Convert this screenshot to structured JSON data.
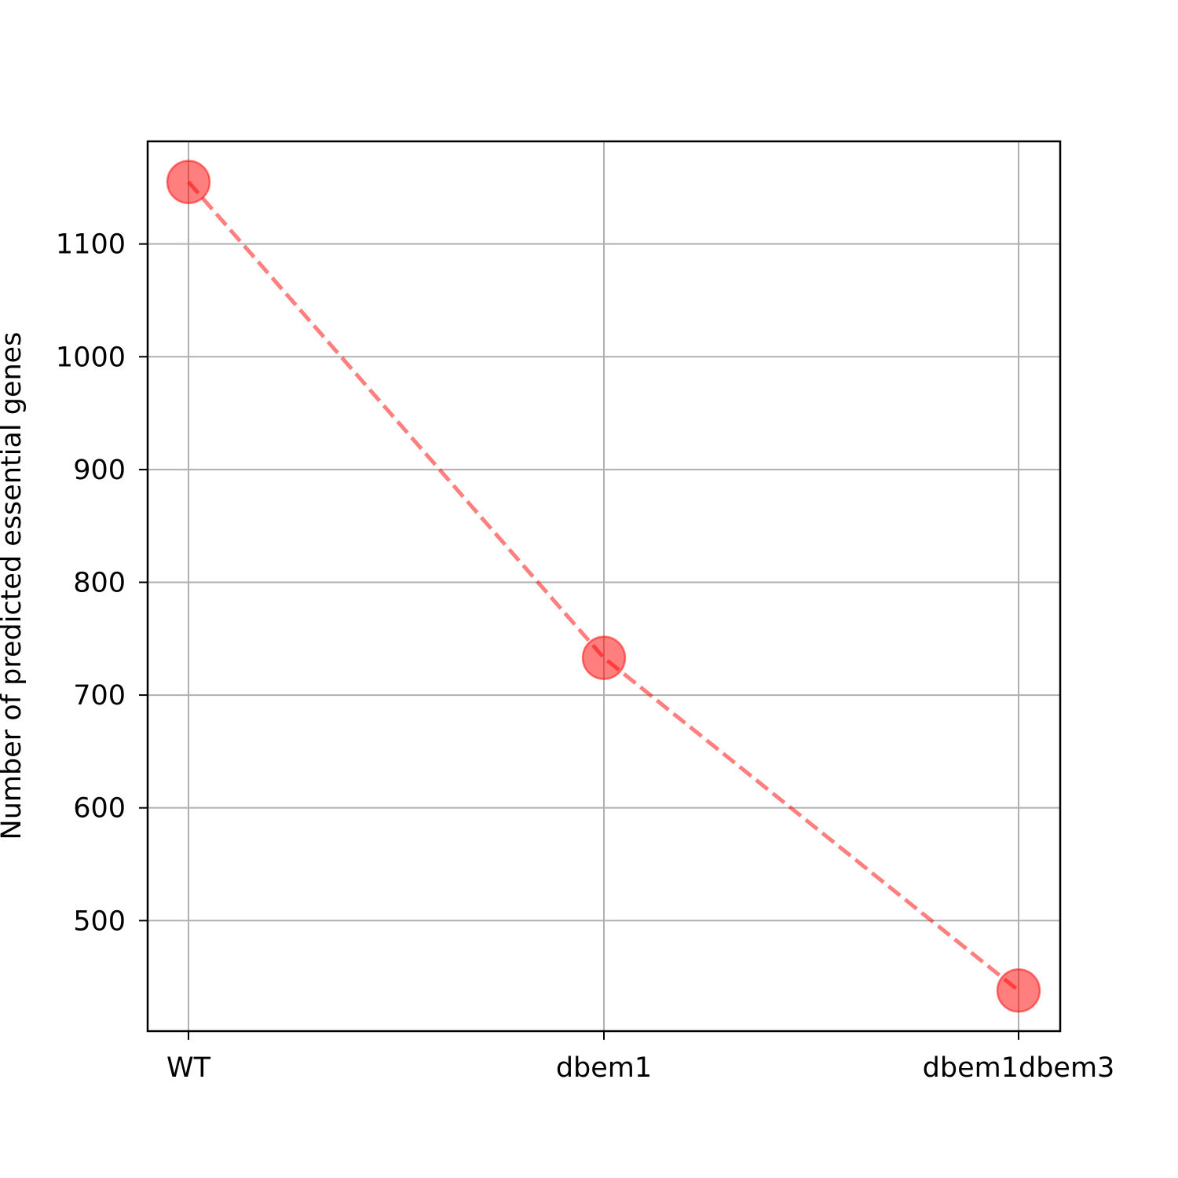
{
  "chart_data": {
    "type": "line",
    "categories": [
      "WT",
      "dbem1",
      "dbem1dbem3"
    ],
    "series": [
      {
        "values": [
          1155,
          733,
          438
        ],
        "color": "#ff0000",
        "line_style": "dashed",
        "marker": "circle",
        "alpha": 0.5
      }
    ],
    "title": "",
    "xlabel": "",
    "ylabel": "Number of predicted essential genes",
    "ylim": [
      402,
      1191
    ],
    "yticks": [
      500,
      600,
      700,
      800,
      900,
      1000,
      1100
    ],
    "grid": true,
    "legend": "none"
  }
}
